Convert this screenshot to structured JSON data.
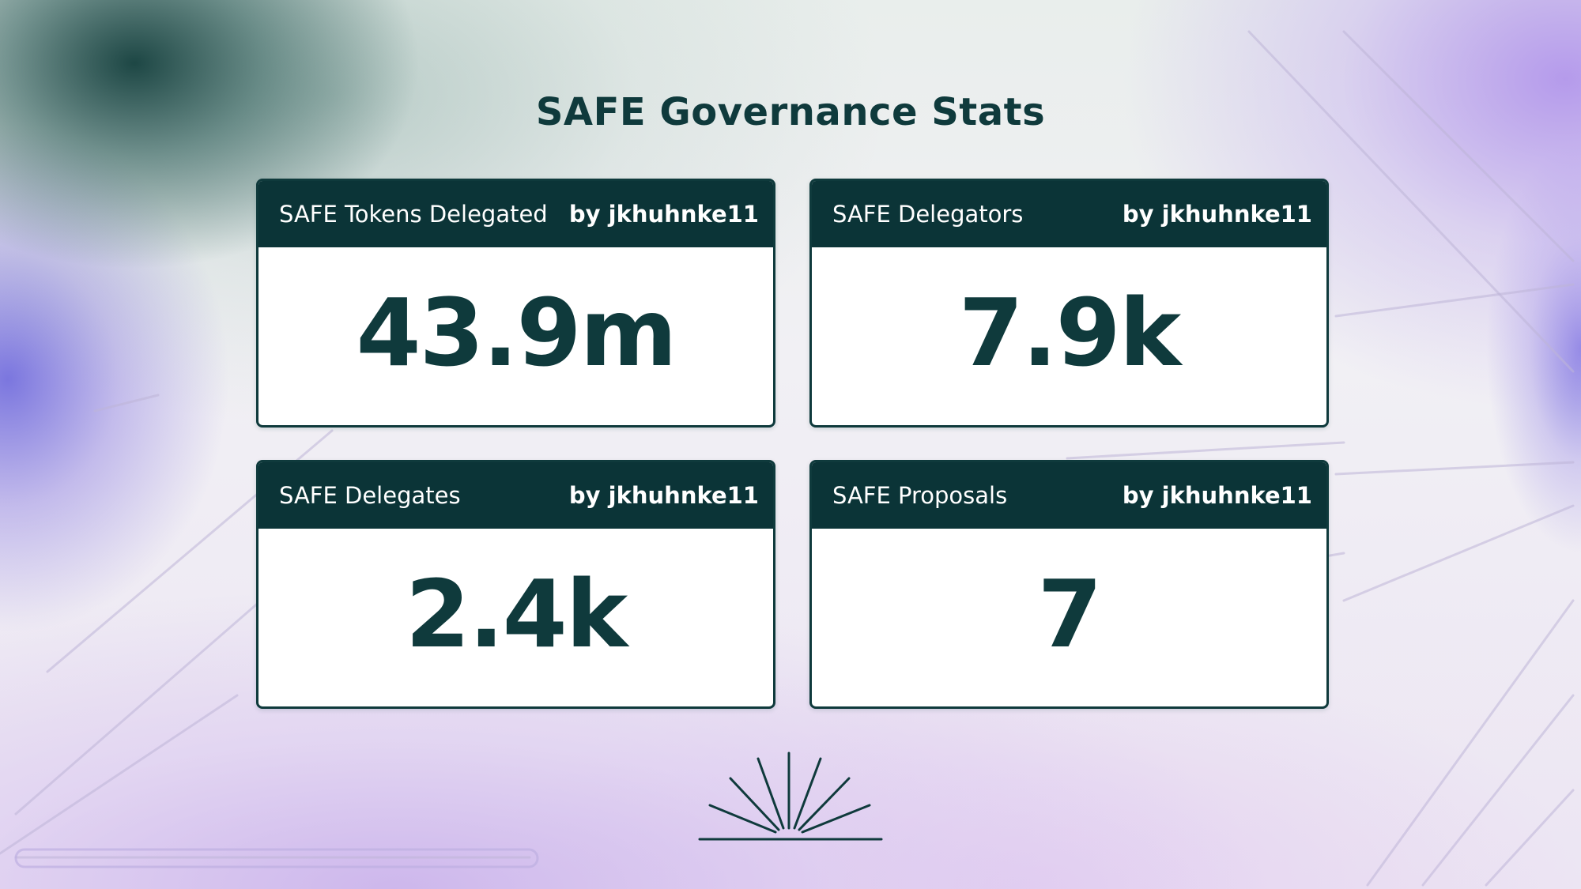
{
  "page": {
    "title": "SAFE Governance Stats"
  },
  "cards": [
    {
      "label": "SAFE Tokens Delegated",
      "author": "by jkhuhnke11",
      "value": "43.9m"
    },
    {
      "label": "SAFE Delegators",
      "author": "by jkhuhnke11",
      "value": "7.9k"
    },
    {
      "label": "SAFE Delegates",
      "author": "by jkhuhnke11",
      "value": "2.4k"
    },
    {
      "label": "SAFE Proposals",
      "author": "by jkhuhnke11",
      "value": "7"
    }
  ],
  "colors": {
    "primary_dark": "#0b3437",
    "text_dark": "#0f3a3c",
    "card_bg": "#ffffff",
    "accent_purple": "#b496eb",
    "accent_teal": "#0e3a38"
  },
  "icons": [
    "sunburst-logo-icon"
  ]
}
